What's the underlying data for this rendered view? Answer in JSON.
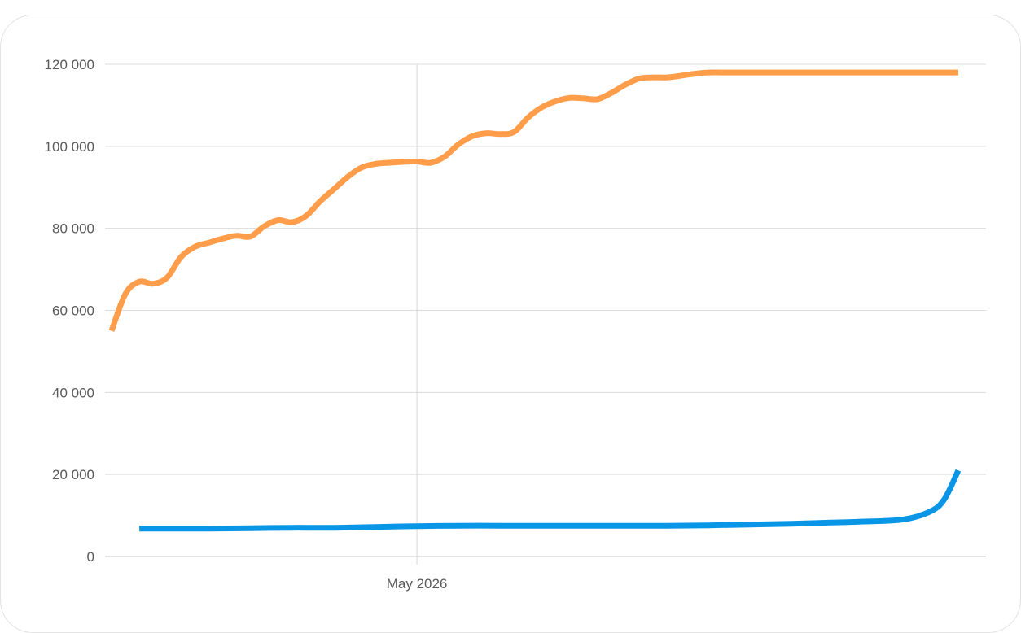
{
  "chart_data": {
    "type": "line",
    "title": "",
    "xlabel": "",
    "ylabel": "",
    "ylim": [
      0,
      120000
    ],
    "xlim": [
      "2026-04-09",
      "2026-06-09"
    ],
    "y_ticks": [
      {
        "value": 0,
        "label": "0"
      },
      {
        "value": 20000,
        "label": "20 000"
      },
      {
        "value": 40000,
        "label": "40 000"
      },
      {
        "value": 60000,
        "label": "60 000"
      },
      {
        "value": 80000,
        "label": "80 000"
      },
      {
        "value": 100000,
        "label": "100 000"
      },
      {
        "value": 120000,
        "label": "120 000"
      }
    ],
    "x_ticks": [
      {
        "value": "2026-05-01",
        "label": "May 2026"
      }
    ],
    "grid": {
      "horizontal": true,
      "vertical": true
    },
    "legend": "none",
    "series": [
      {
        "color": "#ff9d4a",
        "x": [
          "2026-04-09",
          "2026-04-10",
          "2026-04-11",
          "2026-04-12",
          "2026-04-13",
          "2026-04-14",
          "2026-04-15",
          "2026-04-16",
          "2026-04-17",
          "2026-04-18",
          "2026-04-19",
          "2026-04-20",
          "2026-04-21",
          "2026-04-22",
          "2026-04-23",
          "2026-04-24",
          "2026-04-25",
          "2026-04-26",
          "2026-04-27",
          "2026-04-28",
          "2026-04-29",
          "2026-04-30",
          "2026-05-01",
          "2026-05-02",
          "2026-05-03",
          "2026-05-04",
          "2026-05-05",
          "2026-05-06",
          "2026-05-07",
          "2026-05-08",
          "2026-05-09",
          "2026-05-10",
          "2026-05-11",
          "2026-05-12",
          "2026-05-13",
          "2026-05-14",
          "2026-05-15",
          "2026-05-16",
          "2026-05-17",
          "2026-05-18",
          "2026-05-19",
          "2026-05-20",
          "2026-05-21",
          "2026-05-22",
          "2026-05-23",
          "2026-05-24",
          "2026-05-25",
          "2026-05-26",
          "2026-05-27",
          "2026-05-28",
          "2026-05-29",
          "2026-05-30",
          "2026-05-31",
          "2026-06-01",
          "2026-06-02",
          "2026-06-03",
          "2026-06-04",
          "2026-06-05",
          "2026-06-06",
          "2026-06-07",
          "2026-06-08",
          "2026-06-09"
        ],
        "values": [
          55000,
          64000,
          67000,
          66500,
          68000,
          73000,
          75500,
          76500,
          77500,
          78200,
          78000,
          80500,
          82000,
          81500,
          83000,
          86500,
          89500,
          92500,
          94800,
          95700,
          96000,
          96200,
          96300,
          96000,
          97500,
          100500,
          102500,
          103200,
          103000,
          103500,
          107000,
          109500,
          111000,
          111800,
          111700,
          111500,
          113000,
          115000,
          116500,
          116800,
          116800,
          117200,
          117700,
          118000,
          118000,
          118000,
          118000,
          118000,
          118000,
          118000,
          118000,
          118000,
          118000,
          118000,
          118000,
          118000,
          118000,
          118000,
          118000,
          118000,
          118000,
          118000
        ]
      },
      {
        "color": "#0a96e6",
        "x": [
          "2026-04-11",
          "2026-04-13",
          "2026-04-16",
          "2026-04-19",
          "2026-04-22",
          "2026-04-25",
          "2026-04-28",
          "2026-05-01",
          "2026-05-04",
          "2026-05-07",
          "2026-05-10",
          "2026-05-13",
          "2026-05-16",
          "2026-05-19",
          "2026-05-22",
          "2026-05-25",
          "2026-05-28",
          "2026-05-30",
          "2026-06-02",
          "2026-06-05",
          "2026-06-07",
          "2026-06-08",
          "2026-06-09"
        ],
        "values": [
          6800,
          6800,
          6800,
          6900,
          7000,
          7000,
          7200,
          7400,
          7500,
          7500,
          7500,
          7500,
          7500,
          7500,
          7600,
          7800,
          8000,
          8200,
          8500,
          9000,
          11000,
          14000,
          21000
        ]
      }
    ]
  }
}
